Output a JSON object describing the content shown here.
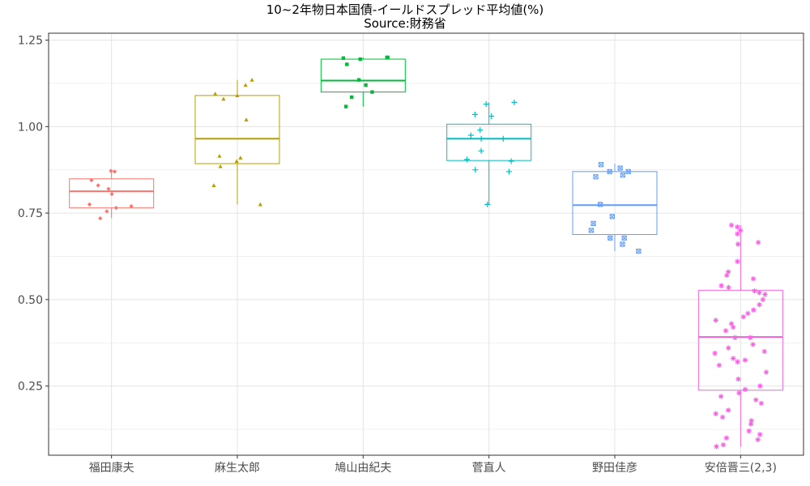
{
  "chart_data": {
    "type": "box",
    "title": "10~2年物日本国債-イールドスプレッド平均値(%)",
    "subtitle": "Source:財務省",
    "xlabel": "",
    "ylabel": "",
    "ylim": [
      0.05,
      1.27
    ],
    "yticks": [
      0.25,
      0.5,
      0.75,
      1.0,
      1.25
    ],
    "ytick_labels": [
      "0.25",
      "0.50",
      "0.75",
      "1.00",
      "1.25"
    ],
    "grid": true,
    "categories": [
      "福田康夫",
      "麻生太郎",
      "鳩山由紀夫",
      "菅直人",
      "野田佳彦",
      "安倍晋三(2,3)"
    ],
    "series": [
      {
        "color": "#F8766D",
        "marker": "diamond",
        "box": {
          "q1": 0.765,
          "median": 0.813,
          "q3": 0.849,
          "whisker_low": 0.735,
          "whisker_high": 0.872
        },
        "points": [
          0.872,
          0.87,
          0.845,
          0.83,
          0.82,
          0.805,
          0.775,
          0.77,
          0.765,
          0.755,
          0.735
        ]
      },
      {
        "color": "#B79F00",
        "marker": "triangle",
        "box": {
          "q1": 0.893,
          "median": 0.965,
          "q3": 1.09,
          "whisker_low": 0.775,
          "whisker_high": 1.135
        },
        "points": [
          1.135,
          1.12,
          1.095,
          1.09,
          1.08,
          1.02,
          0.915,
          0.91,
          0.9,
          0.885,
          0.83,
          0.775
        ]
      },
      {
        "color": "#00BA38",
        "marker": "square",
        "box": {
          "q1": 1.1,
          "median": 1.133,
          "q3": 1.195,
          "whisker_low": 1.058,
          "whisker_high": 1.2
        },
        "points": [
          1.2,
          1.198,
          1.195,
          1.2,
          1.18,
          1.135,
          1.12,
          1.1,
          1.085,
          1.058
        ]
      },
      {
        "color": "#00BFC4",
        "marker": "plus",
        "box": {
          "q1": 0.902,
          "median": 0.965,
          "q3": 1.007,
          "whisker_low": 0.775,
          "whisker_high": 1.07
        },
        "points": [
          1.07,
          1.065,
          1.035,
          1.03,
          0.99,
          0.975,
          0.965,
          0.965,
          0.93,
          0.905,
          0.9,
          0.875,
          0.87,
          0.775
        ]
      },
      {
        "color": "#619CFF",
        "marker": "square-x",
        "box": {
          "q1": 0.688,
          "median": 0.773,
          "q3": 0.87,
          "whisker_low": 0.64,
          "whisker_high": 0.893
        },
        "points": [
          0.89,
          0.88,
          0.87,
          0.87,
          0.86,
          0.855,
          0.775,
          0.74,
          0.72,
          0.7,
          0.678,
          0.678,
          0.66,
          0.64
        ]
      },
      {
        "color": "#F564E3",
        "marker": "asterisk",
        "box": {
          "q1": 0.238,
          "median": 0.392,
          "q3": 0.527,
          "whisker_low": 0.075,
          "whisker_high": 0.715
        },
        "points": [
          0.715,
          0.71,
          0.7,
          0.69,
          0.665,
          0.66,
          0.61,
          0.58,
          0.57,
          0.56,
          0.54,
          0.535,
          0.525,
          0.52,
          0.515,
          0.5,
          0.485,
          0.47,
          0.46,
          0.45,
          0.44,
          0.43,
          0.42,
          0.41,
          0.39,
          0.39,
          0.37,
          0.36,
          0.35,
          0.345,
          0.33,
          0.325,
          0.32,
          0.31,
          0.29,
          0.27,
          0.25,
          0.24,
          0.23,
          0.22,
          0.21,
          0.2,
          0.18,
          0.17,
          0.16,
          0.15,
          0.14,
          0.12,
          0.11,
          0.1,
          0.095,
          0.08,
          0.075
        ]
      }
    ]
  }
}
